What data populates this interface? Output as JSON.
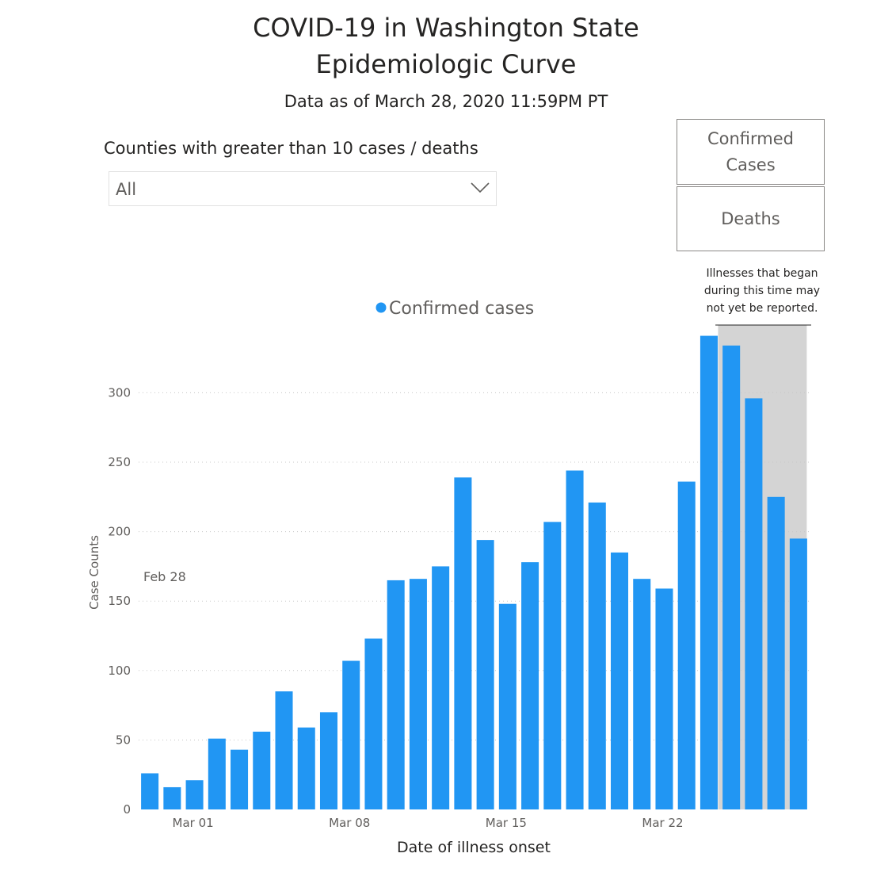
{
  "header": {
    "title_line1": "COVID-19 in Washington State",
    "title_line2": "Epidemiologic Curve",
    "as_of": "Data as of March 28, 2020 11:59PM PT"
  },
  "filter": {
    "label": "Counties with greater than 10 cases / deaths",
    "selected": "All"
  },
  "toggles": {
    "confirmed_label": "Confirmed Cases",
    "deaths_label": "Deaths"
  },
  "annotation": {
    "lines": [
      "Illnesses that began",
      "during this time may",
      "not yet be reported."
    ]
  },
  "chart_data": {
    "type": "bar",
    "series": [
      {
        "name": "Confirmed cases",
        "color": "#2196f3",
        "values": [
          26,
          16,
          21,
          51,
          43,
          56,
          85,
          59,
          70,
          107,
          123,
          165,
          166,
          175,
          239,
          194,
          148,
          178,
          207,
          244,
          221,
          185,
          166,
          159,
          236,
          341,
          334,
          296,
          225,
          195
        ]
      }
    ],
    "categories": [
      "Feb 28",
      "Feb 29",
      "Mar 01",
      "Mar 02",
      "Mar 03",
      "Mar 04",
      "Mar 05",
      "Mar 06",
      "Mar 07",
      "Mar 08",
      "Mar 09",
      "Mar 10",
      "Mar 11",
      "Mar 12",
      "Mar 13",
      "Mar 14",
      "Mar 15",
      "Mar 16",
      "Mar 17",
      "Mar 18",
      "Mar 19",
      "Mar 20",
      "Mar 21",
      "Mar 22",
      "Mar 23",
      "Mar 24",
      "Mar 25",
      "Mar 26",
      "Mar 27",
      "Mar 28"
    ],
    "xtick_labels": [
      "Mar 01",
      "Mar 08",
      "Mar 15",
      "Mar 22"
    ],
    "xtick_categories": [
      "Mar 01",
      "Mar 08",
      "Mar 15",
      "Mar 22"
    ],
    "first_date_label": "Feb 28",
    "xlabel": "Date of illness onset",
    "ylabel": "Case Counts",
    "yticks": [
      0,
      50,
      100,
      150,
      200,
      250,
      300
    ],
    "ylim": [
      0,
      341
    ],
    "grid": "horizontal dotted",
    "legend_position": "top-center",
    "shaded_region": {
      "from": "Mar 25",
      "to": "Mar 28",
      "color": "#d4d4d4"
    }
  }
}
